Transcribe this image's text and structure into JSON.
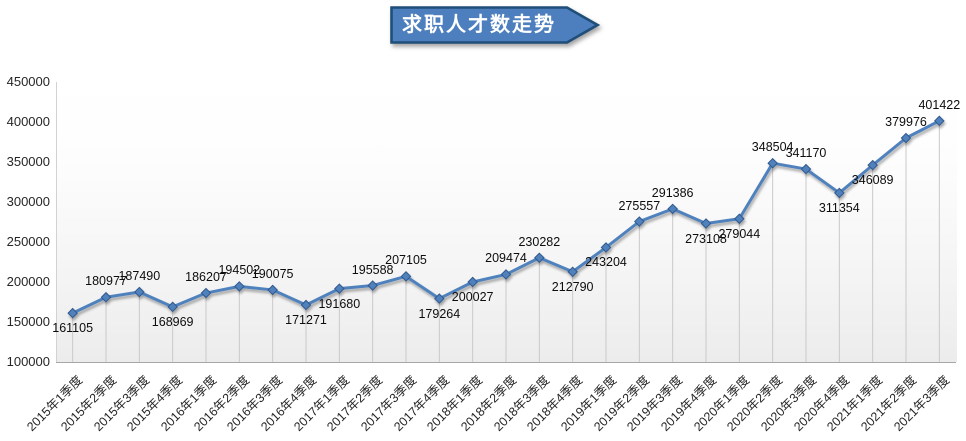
{
  "banner": {
    "text": "求职人才数走势",
    "fill": "#4d7fbe",
    "border": "#1f4e79",
    "text_color": "#ffffff"
  },
  "chart_data": {
    "type": "line",
    "title": "求职人才数走势",
    "xlabel": "",
    "ylabel": "",
    "legend": "none",
    "grid": "vertical-drop-lines",
    "ylim": [
      100000,
      450000
    ],
    "ytick_step": 50000,
    "ytick_labels": [
      "100000",
      "150000",
      "200000",
      "250000",
      "300000",
      "350000",
      "400000",
      "450000"
    ],
    "categories": [
      "2015年1季度",
      "2015年2季度",
      "2015年3季度",
      "2015年4季度",
      "2016年1季度",
      "2016年2季度",
      "2016年3季度",
      "2016年4季度",
      "2017年1季度",
      "2017年2季度",
      "2017年3季度",
      "2017年4季度",
      "2018年1季度",
      "2018年2季度",
      "2018年3季度",
      "2018年4季度",
      "2019年1季度",
      "2019年2季度",
      "2019年3季度",
      "2019年4季度",
      "2020年1季度",
      "2020年2季度",
      "2020年3季度",
      "2020年4季度",
      "2021年1季度",
      "2021年2季度",
      "2021年3季度"
    ],
    "values": [
      161105,
      180977,
      187490,
      168969,
      186207,
      194502,
      190075,
      171271,
      191680,
      195588,
      207105,
      179264,
      200027,
      209474,
      230282,
      212790,
      243204,
      275557,
      291386,
      273108,
      279044,
      348504,
      341170,
      311354,
      346089,
      379976,
      401422
    ],
    "label_side": [
      "below",
      "above",
      "above",
      "below",
      "above",
      "above",
      "above",
      "below",
      "below",
      "above",
      "above",
      "below",
      "below",
      "above",
      "above",
      "below",
      "below",
      "above",
      "above",
      "below",
      "below",
      "above",
      "above",
      "below",
      "below",
      "above",
      "above"
    ],
    "line_color": "#4F81BD",
    "marker": "diamond",
    "marker_fill": "#4F81BD",
    "marker_border": "#31598c",
    "droplines_color": "#c9c9c9",
    "axis_line_color": "#a6a6a6"
  }
}
